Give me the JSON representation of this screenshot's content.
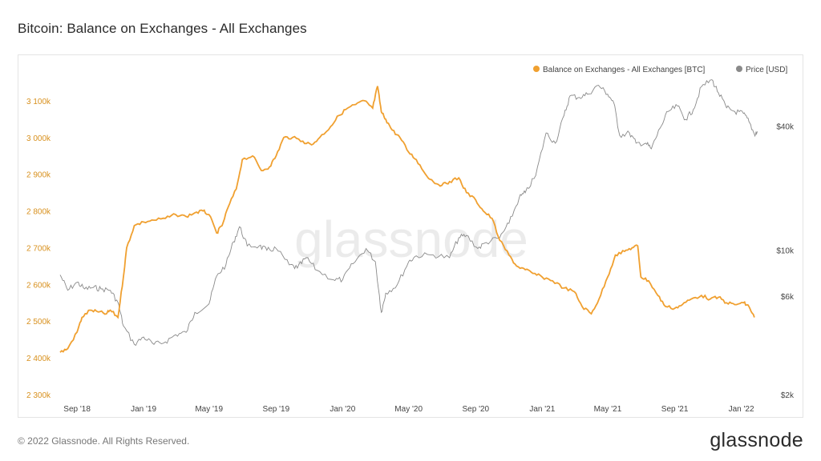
{
  "title": "Bitcoin: Balance on Exchanges - All Exchanges",
  "footer": {
    "copyright": "© 2022 Glassnode. All Rights Reserved.",
    "logo_text": "glassnode"
  },
  "watermark": "glassnode",
  "colors": {
    "balance": "#f0a030",
    "price": "#8a8a8a",
    "left_axis": "#d8901d"
  },
  "chart_data": {
    "type": "line",
    "title": "Bitcoin: Balance on Exchanges - All Exchanges",
    "x_range": [
      "2018-08-01",
      "2022-01-31"
    ],
    "x_ticks": [
      "Sep '18",
      "Jan '19",
      "May '19",
      "Sep '19",
      "Jan '20",
      "May '20",
      "Sep '20",
      "Jan '21",
      "May '21",
      "Sep '21",
      "Jan '22"
    ],
    "y_left": {
      "range": [
        2300000,
        3150000
      ],
      "ticks": [
        2300000,
        2400000,
        2500000,
        2600000,
        2700000,
        2800000,
        2900000,
        3000000,
        3100000
      ],
      "tick_labels": [
        "2 300k",
        "2 400k",
        "2 500k",
        "2 600k",
        "2 700k",
        "2 800k",
        "2 900k",
        "3 000k",
        "3 100k"
      ]
    },
    "y_right": {
      "scale": "log",
      "range": [
        2000,
        65000
      ],
      "ticks": [
        2000,
        6000,
        10000,
        40000
      ],
      "tick_labels": [
        "$2k",
        "$6k",
        "$10k",
        "$40k"
      ]
    },
    "legend_position": "top-right",
    "series": [
      {
        "name": "Balance on Exchanges - All Exchanges [BTC]",
        "axis": "left",
        "x": [
          "2018-08-01",
          "2018-08-15",
          "2018-09-01",
          "2018-09-10",
          "2018-09-25",
          "2018-10-10",
          "2018-10-25",
          "2018-11-01",
          "2018-11-15",
          "2018-11-25",
          "2018-12-01",
          "2018-12-15",
          "2019-01-01",
          "2019-01-20",
          "2019-02-10",
          "2019-03-01",
          "2019-03-20",
          "2019-04-05",
          "2019-04-20",
          "2019-05-01",
          "2019-05-15",
          "2019-05-25",
          "2019-06-05",
          "2019-06-20",
          "2019-07-01",
          "2019-07-20",
          "2019-08-05",
          "2019-08-20",
          "2019-09-01",
          "2019-09-15",
          "2019-10-01",
          "2019-10-20",
          "2019-11-05",
          "2019-11-20",
          "2019-12-10",
          "2019-12-25",
          "2020-01-10",
          "2020-01-25",
          "2020-02-10",
          "2020-02-25",
          "2020-03-05",
          "2020-03-12",
          "2020-03-20",
          "2020-04-01",
          "2020-04-15",
          "2020-05-01",
          "2020-05-15",
          "2020-06-01",
          "2020-06-15",
          "2020-07-01",
          "2020-07-15",
          "2020-08-01",
          "2020-08-15",
          "2020-09-01",
          "2020-09-15",
          "2020-10-01",
          "2020-10-15",
          "2020-11-01",
          "2020-11-15",
          "2020-12-01",
          "2020-12-15",
          "2021-01-01",
          "2021-01-20",
          "2021-02-10",
          "2021-03-01",
          "2021-03-15",
          "2021-04-01",
          "2021-04-15",
          "2021-05-01",
          "2021-05-15",
          "2021-06-01",
          "2021-06-15",
          "2021-06-25",
          "2021-07-01",
          "2021-07-15",
          "2021-08-01",
          "2021-08-15",
          "2021-09-01",
          "2021-09-15",
          "2021-10-01",
          "2021-10-20",
          "2021-11-05",
          "2021-11-20",
          "2021-12-05",
          "2021-12-20",
          "2022-01-05",
          "2022-01-15",
          "2022-01-25"
        ],
        "y": [
          2415000,
          2425000,
          2470000,
          2510000,
          2530000,
          2525000,
          2520000,
          2530000,
          2510000,
          2620000,
          2700000,
          2760000,
          2770000,
          2775000,
          2780000,
          2790000,
          2785000,
          2795000,
          2800000,
          2790000,
          2740000,
          2760000,
          2810000,
          2860000,
          2940000,
          2950000,
          2910000,
          2920000,
          2950000,
          3000000,
          3000000,
          2990000,
          2980000,
          3000000,
          3030000,
          3060000,
          3080000,
          3090000,
          3100000,
          3080000,
          3140000,
          3070000,
          3050000,
          3020000,
          3000000,
          2960000,
          2940000,
          2900000,
          2880000,
          2870000,
          2880000,
          2890000,
          2850000,
          2830000,
          2800000,
          2780000,
          2720000,
          2680000,
          2650000,
          2640000,
          2630000,
          2620000,
          2610000,
          2590000,
          2580000,
          2540000,
          2520000,
          2560000,
          2620000,
          2680000,
          2690000,
          2700000,
          2705000,
          2620000,
          2610000,
          2570000,
          2540000,
          2535000,
          2545000,
          2560000,
          2570000,
          2560000,
          2565000,
          2550000,
          2545000,
          2550000,
          2540000,
          2510000
        ]
      },
      {
        "name": "Price [USD]",
        "axis": "right",
        "x": [
          "2018-08-01",
          "2018-08-15",
          "2018-09-01",
          "2018-09-15",
          "2018-10-01",
          "2018-10-15",
          "2018-11-01",
          "2018-11-15",
          "2018-11-25",
          "2018-12-15",
          "2019-01-01",
          "2019-01-20",
          "2019-02-10",
          "2019-03-01",
          "2019-03-20",
          "2019-04-05",
          "2019-05-01",
          "2019-05-15",
          "2019-06-01",
          "2019-06-15",
          "2019-06-26",
          "2019-07-10",
          "2019-08-01",
          "2019-08-15",
          "2019-09-01",
          "2019-09-25",
          "2019-10-10",
          "2019-10-26",
          "2019-11-15",
          "2019-12-15",
          "2020-01-01",
          "2020-01-20",
          "2020-02-13",
          "2020-03-01",
          "2020-03-12",
          "2020-03-20",
          "2020-04-10",
          "2020-05-01",
          "2020-05-15",
          "2020-06-15",
          "2020-07-15",
          "2020-08-01",
          "2020-08-15",
          "2020-09-05",
          "2020-09-20",
          "2020-10-15",
          "2020-11-01",
          "2020-11-20",
          "2020-12-01",
          "2020-12-20",
          "2021-01-08",
          "2021-01-25",
          "2021-02-10",
          "2021-02-21",
          "2021-03-10",
          "2021-03-25",
          "2021-04-14",
          "2021-05-01",
          "2021-05-12",
          "2021-05-23",
          "2021-06-10",
          "2021-06-22",
          "2021-07-10",
          "2021-07-20",
          "2021-08-05",
          "2021-08-20",
          "2021-09-06",
          "2021-09-21",
          "2021-10-05",
          "2021-10-20",
          "2021-11-08",
          "2021-11-20",
          "2021-12-05",
          "2021-12-20",
          "2022-01-05",
          "2022-01-15",
          "2022-01-25",
          "2022-01-31"
        ],
        "y": [
          7600,
          6400,
          7000,
          6500,
          6600,
          6500,
          6400,
          5600,
          4300,
          3500,
          3800,
          3500,
          3600,
          3900,
          4000,
          5000,
          5500,
          7500,
          8500,
          11000,
          13000,
          10500,
          10500,
          10000,
          10200,
          8500,
          8200,
          9200,
          8000,
          7200,
          7200,
          8600,
          10200,
          8800,
          5000,
          6200,
          6800,
          8800,
          9400,
          9500,
          9200,
          11500,
          11800,
          10200,
          10900,
          11500,
          13500,
          18000,
          19000,
          23000,
          37000,
          33000,
          45000,
          56000,
          55000,
          57000,
          63000,
          57000,
          52000,
          36000,
          37000,
          33000,
          33000,
          31000,
          39000,
          47000,
          50000,
          43000,
          48000,
          62000,
          67000,
          58000,
          49000,
          47000,
          46000,
          42000,
          36500,
          37500
        ]
      }
    ]
  }
}
